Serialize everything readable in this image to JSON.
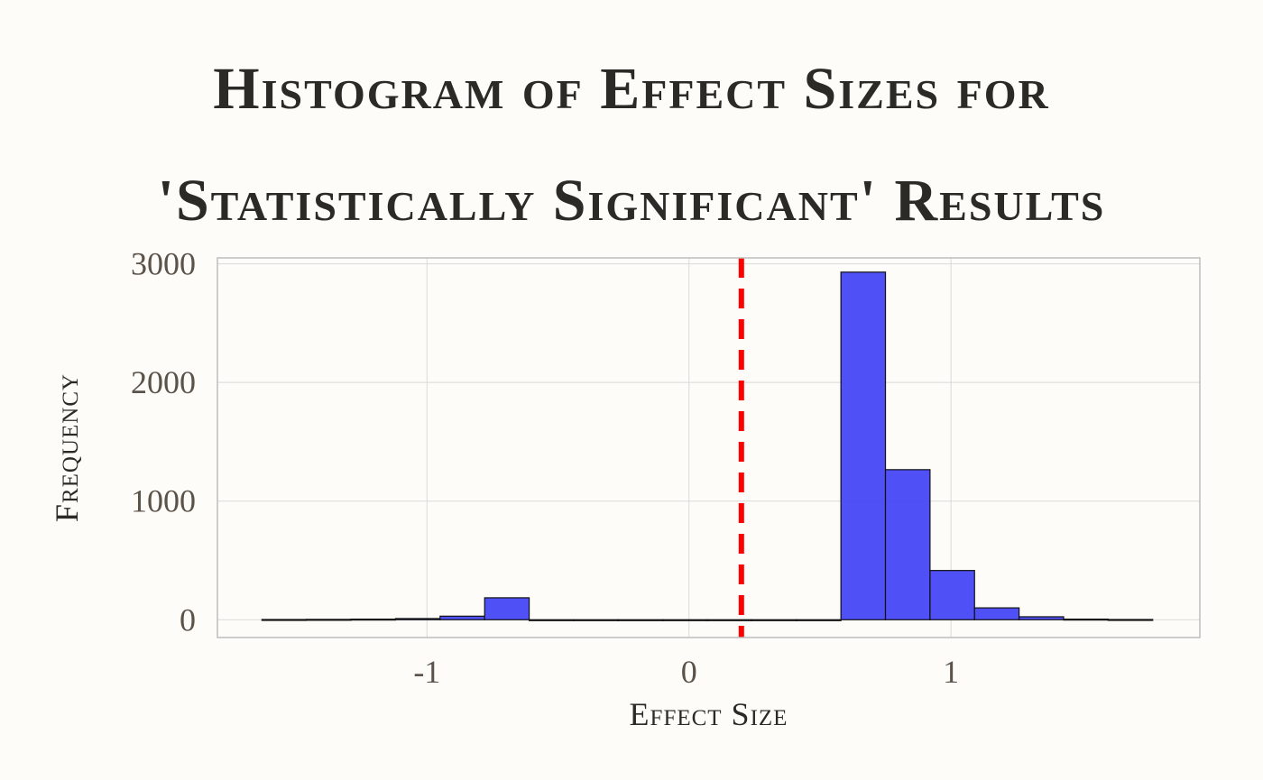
{
  "chart_data": {
    "type": "bar",
    "title_lines": [
      "Histogram of Effect Sizes for",
      "'Statistically Significant' Results"
    ],
    "xlabel": "Effect Size",
    "ylabel": "Frequency",
    "xlim": [
      -1.8,
      1.95
    ],
    "ylim": [
      -150,
      3050
    ],
    "x_ticks": [
      -1,
      0,
      1
    ],
    "x_tick_labels": [
      "-1",
      "0",
      "1"
    ],
    "y_ticks": [
      0,
      1000,
      2000,
      3000
    ],
    "y_tick_labels": [
      "0",
      "1000",
      "2000",
      "3000"
    ],
    "bin_width": 0.17,
    "bin_starts": [
      -1.63,
      -1.46,
      -1.29,
      -1.12,
      -0.95,
      -0.78,
      -0.61,
      -0.44,
      -0.27,
      -0.1,
      0.07,
      0.24,
      0.41,
      0.58,
      0.75,
      0.92,
      1.09,
      1.26,
      1.43,
      1.6
    ],
    "values": [
      2,
      3,
      5,
      10,
      30,
      185,
      0,
      0,
      0,
      0,
      0,
      0,
      0,
      2930,
      1265,
      415,
      100,
      25,
      5,
      2
    ],
    "reference_line_x": 0.2,
    "grid": true,
    "colors": {
      "bar_fill": "#4747f7",
      "bar_stroke": "#111111",
      "ref_line": "#ff0000",
      "grid": "#d9d9d9",
      "panel_border": "#bdbdbd"
    }
  }
}
